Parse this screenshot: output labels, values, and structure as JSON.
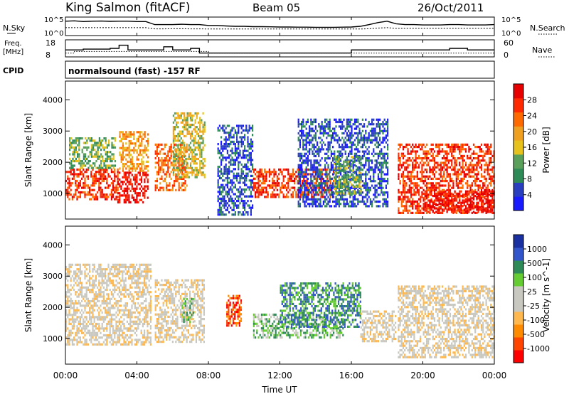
{
  "header": {
    "title": "King Salmon (fitACF)",
    "beam": "Beam 05",
    "date": "26/Oct/2011"
  },
  "labels": {
    "nsky": "N.Sky",
    "nsearch": "N.Search",
    "freq_line1": "Freq.",
    "freq_line2": "[MHz]",
    "nave": "Nave",
    "cpid": "CPID",
    "cpid_value": "normalsound (fast) -157 RF"
  },
  "colors": {
    "frame": "#000000",
    "power_scale": [
      "#1a1aff",
      "#2a3fbf",
      "#2e8b57",
      "#5aa05a",
      "#e8c21c",
      "#f0a020",
      "#ff6a00",
      "#ff2a00",
      "#e60000"
    ],
    "velocity_scale": [
      "#ff0000",
      "#ff4500",
      "#ff8c00",
      "#ffb84d",
      "#c8c8c0",
      "#c8c8c0",
      "#66cc33",
      "#2e8b57",
      "#3355cc",
      "#1a2fa0"
    ]
  },
  "chart_data": [
    {
      "type": "line",
      "name": "noise-panel",
      "ylabel_left": "N.Sky",
      "ylabel_right": "N.Search",
      "yticks_left": [
        "10^5",
        "10^0"
      ],
      "yticks_right": [
        "10^5",
        "10^0"
      ],
      "x": [
        0,
        0.5,
        1,
        1.5,
        2,
        2.5,
        3,
        3.5,
        4,
        4.5,
        5,
        5.5,
        6,
        6.5,
        7,
        7.5,
        8,
        8.5,
        9,
        9.5,
        10,
        10.5,
        11,
        11.5,
        12,
        12.5,
        13,
        13.5,
        14,
        14.5,
        15,
        15.5,
        16,
        16.5,
        17,
        17.5,
        18,
        18.5,
        19,
        19.5,
        20,
        20.5,
        21,
        21.5,
        22,
        22.5,
        23,
        23.5,
        24
      ],
      "series": [
        {
          "values": [
            0.8,
            0.82,
            0.78,
            0.8,
            0.81,
            0.79,
            0.8,
            0.8,
            0.78,
            0.78,
            0.6,
            0.6,
            0.6,
            0.62,
            0.6,
            0.6,
            0.55,
            0.55,
            0.52,
            0.5,
            0.5,
            0.48,
            0.48,
            0.47,
            0.46,
            0.46,
            0.45,
            0.45,
            0.44,
            0.44,
            0.44,
            0.45,
            0.46,
            0.5,
            0.6,
            0.72,
            0.8,
            0.65,
            0.6,
            0.6,
            0.58,
            0.58,
            0.58,
            0.6,
            0.6,
            0.58,
            0.58,
            0.58,
            0.6
          ]
        },
        {
          "values": [
            0.42,
            0.42,
            0.42,
            0.42,
            0.42,
            0.42,
            0.42,
            0.42,
            0.42,
            0.42,
            0.35,
            0.35,
            0.36,
            0.36,
            0.35,
            0.35,
            0.34,
            0.34,
            0.34,
            0.34,
            0.34,
            0.34,
            0.34,
            0.34,
            0.34,
            0.34,
            0.34,
            0.34,
            0.34,
            0.34,
            0.34,
            0.34,
            0.34,
            0.34,
            0.36,
            0.4,
            0.42,
            0.38,
            0.38,
            0.38,
            0.38,
            0.38,
            0.38,
            0.38,
            0.38,
            0.38,
            0.38,
            0.38,
            0.38
          ]
        }
      ]
    },
    {
      "type": "line",
      "name": "frequency-panel",
      "ylabel_left": "Freq. [MHz]",
      "ylabel_right": "Nave",
      "yticks_left": [
        "18",
        "8"
      ],
      "yticks_right": [
        "60",
        "0"
      ],
      "x": [
        0,
        0.5,
        1,
        1.5,
        2,
        2.5,
        3,
        3.5,
        4,
        4.5,
        5,
        5.5,
        6,
        6.5,
        7,
        7.5,
        8,
        8.5,
        9,
        9.5,
        10,
        10.5,
        11,
        11.5,
        12,
        12.5,
        13,
        13.5,
        14,
        14.5,
        15,
        15.5,
        16,
        16.5,
        17,
        17.5,
        18,
        18.5,
        19,
        19.5,
        20,
        20.5,
        21,
        21.5,
        22,
        22.5,
        23,
        23.5,
        24
      ],
      "series": [
        {
          "values": [
            12,
            12,
            12.5,
            12.5,
            12.5,
            13,
            15,
            12,
            12,
            12,
            12,
            14,
            12,
            12,
            13,
            10,
            10,
            10,
            10,
            10,
            10,
            10,
            10,
            10,
            10,
            10,
            10,
            10,
            10,
            10,
            10,
            10,
            12,
            12,
            12,
            12,
            12,
            12,
            12,
            12,
            12,
            12,
            12,
            13,
            13,
            12,
            12,
            12,
            12
          ]
        },
        {
          "values": [
            10,
            11,
            11,
            11,
            11,
            11,
            11,
            11,
            11,
            11,
            11,
            11,
            11,
            11,
            11,
            11,
            10,
            10,
            10,
            10,
            10,
            10,
            10,
            10,
            10,
            10,
            10,
            10,
            10,
            10,
            10,
            10,
            10,
            10,
            10,
            10,
            10,
            10,
            10,
            10,
            10,
            10,
            10,
            10,
            10,
            10,
            10,
            10,
            10
          ]
        }
      ]
    },
    {
      "type": "heatmap",
      "name": "power-panel",
      "ylabel": "Slant Range [km]",
      "yticks": [
        1000,
        2000,
        3000,
        4000
      ],
      "ylim": [
        180,
        4600
      ],
      "colorbar_label": "Power [dB]",
      "colorbar_ticks": [
        "4",
        "8",
        "12",
        "16",
        "20",
        "24",
        "28"
      ],
      "clusters": [
        {
          "t0": 0.0,
          "t1": 2.9,
          "r0": 800,
          "r1": 1800,
          "level": 7
        },
        {
          "t0": 0.2,
          "t1": 2.8,
          "r0": 1800,
          "r1": 2800,
          "level": 3
        },
        {
          "t0": 2.9,
          "t1": 4.6,
          "r0": 700,
          "r1": 1700,
          "level": 8
        },
        {
          "t0": 3.0,
          "t1": 4.6,
          "r0": 1700,
          "r1": 3000,
          "level": 5
        },
        {
          "t0": 5.0,
          "t1": 6.8,
          "r0": 1100,
          "r1": 2600,
          "level": 6
        },
        {
          "t0": 6.0,
          "t1": 7.8,
          "r0": 1500,
          "r1": 3600,
          "level": 4
        },
        {
          "t0": 8.5,
          "t1": 10.5,
          "r0": 300,
          "r1": 3200,
          "level": 1
        },
        {
          "t0": 10.5,
          "t1": 15.0,
          "r0": 900,
          "r1": 1800,
          "level": 7
        },
        {
          "t0": 13.0,
          "t1": 18.0,
          "r0": 600,
          "r1": 3400,
          "level": 1
        },
        {
          "t0": 15.0,
          "t1": 16.5,
          "r0": 1000,
          "r1": 2200,
          "level": 3
        },
        {
          "t0": 18.6,
          "t1": 24.0,
          "r0": 400,
          "r1": 2600,
          "level": 7
        },
        {
          "t0": 20.0,
          "t1": 24.0,
          "r0": 400,
          "r1": 1100,
          "level": 8
        }
      ]
    },
    {
      "type": "heatmap",
      "name": "velocity-panel",
      "ylabel": "Slant Range [km]",
      "yticks": [
        1000,
        2000,
        3000,
        4000
      ],
      "ylim": [
        180,
        4600
      ],
      "colorbar_label": "Velocity [m s^-1]",
      "colorbar_ticks": [
        "1000",
        "500",
        "100",
        "25",
        "-25",
        "-100",
        "-500",
        "-1000"
      ],
      "clusters": [
        {
          "t0": 0.0,
          "t1": 4.8,
          "r0": 800,
          "r1": 3400,
          "level": 4
        },
        {
          "t0": 5.0,
          "t1": 7.8,
          "r0": 900,
          "r1": 2900,
          "level": 4
        },
        {
          "t0": 6.5,
          "t1": 7.2,
          "r0": 1500,
          "r1": 2300,
          "level": 6
        },
        {
          "t0": 9.0,
          "t1": 9.8,
          "r0": 1400,
          "r1": 2400,
          "level": 1
        },
        {
          "t0": 10.5,
          "t1": 15.5,
          "r0": 1000,
          "r1": 1800,
          "level": 6
        },
        {
          "t0": 12.0,
          "t1": 16.5,
          "r0": 1400,
          "r1": 2800,
          "level": 7
        },
        {
          "t0": 16.5,
          "t1": 18.5,
          "r0": 900,
          "r1": 1900,
          "level": 4
        },
        {
          "t0": 18.6,
          "t1": 24.0,
          "r0": 400,
          "r1": 2700,
          "level": 4
        }
      ]
    }
  ],
  "xaxis": {
    "ticks": [
      "00:00",
      "04:00",
      "08:00",
      "12:00",
      "16:00",
      "20:00",
      "00:00"
    ],
    "label": "Time UT",
    "xlim": [
      0,
      24
    ]
  }
}
